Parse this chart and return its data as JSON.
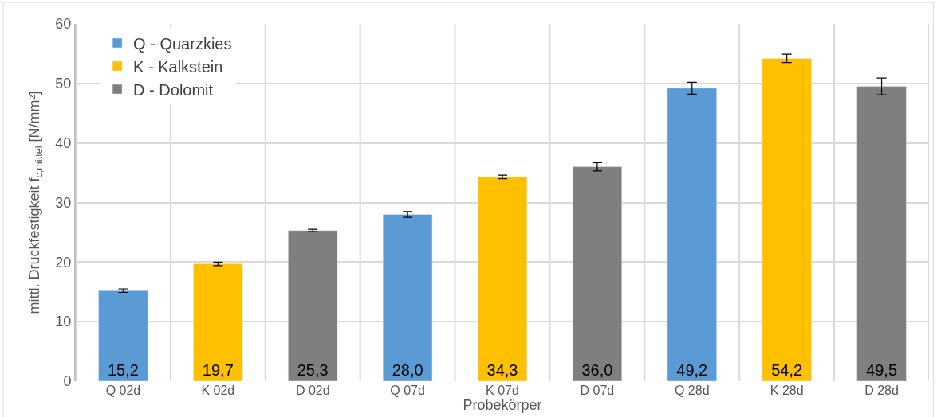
{
  "chart_data": {
    "type": "bar",
    "xlabel": "Probekörper",
    "ylabel": "mittl. Druckfestigkeit f$_{c,mittel}$ [N/mm²]",
    "categories": [
      "Q 02d",
      "K 02d",
      "D 02d",
      "Q 07d",
      "K 07d",
      "D 07d",
      "Q 28d",
      "K 28d",
      "D 28d"
    ],
    "series": [
      {
        "name": "Q - Quarzkies",
        "color": "#5b9bd5",
        "values": [
          15.2,
          null,
          null,
          28.0,
          null,
          null,
          49.2,
          null,
          null
        ],
        "value_labels": [
          "15,2",
          null,
          null,
          "28,0",
          null,
          null,
          "49,2",
          null,
          null
        ],
        "errors": [
          0.3,
          null,
          null,
          0.5,
          null,
          null,
          1.0,
          null,
          null
        ]
      },
      {
        "name": "K - Kalkstein",
        "color": "#ffc000",
        "values": [
          null,
          19.7,
          null,
          null,
          34.3,
          null,
          null,
          54.2,
          null
        ],
        "value_labels": [
          null,
          "19,7",
          null,
          null,
          "34,3",
          null,
          null,
          "54,2",
          null
        ],
        "errors": [
          null,
          0.3,
          null,
          null,
          0.3,
          null,
          null,
          0.7,
          null
        ]
      },
      {
        "name": "D - Dolomit",
        "color": "#7f7f7f",
        "values": [
          null,
          null,
          25.3,
          null,
          null,
          36.0,
          null,
          null,
          49.5
        ],
        "value_labels": [
          null,
          null,
          "25,3",
          null,
          null,
          "36,0",
          null,
          null,
          "49,5"
        ],
        "errors": [
          null,
          null,
          0.2,
          null,
          null,
          0.7,
          null,
          null,
          1.4
        ]
      }
    ],
    "ylim": [
      0,
      60
    ],
    "yticks": [
      0,
      10,
      20,
      30,
      40,
      50,
      60
    ],
    "grid": true,
    "legend": "top left"
  }
}
